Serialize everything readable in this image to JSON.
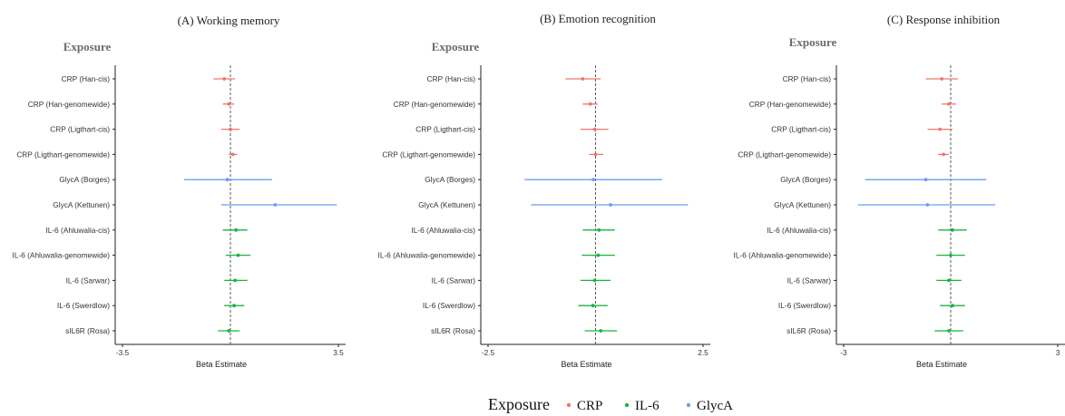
{
  "colors": {
    "CRP": "#f0766d",
    "IL-6": "#18b541",
    "GlycA": "#6a9ff0"
  },
  "legend": {
    "title": "Exposure",
    "items": [
      {
        "label": "CRP",
        "group": "CRP"
      },
      {
        "label": "IL-6",
        "group": "IL-6"
      },
      {
        "label": "GlycA",
        "group": "GlycA"
      }
    ]
  },
  "chart_data": [
    {
      "type": "forest",
      "title": "(A) Working memory",
      "ylabel_header": "Exposure",
      "xlabel": "Beta Estimate",
      "xlim": [
        -3.5,
        3.5
      ],
      "xticks": [
        "-3.5",
        "3.5"
      ],
      "rows": [
        {
          "label": "CRP (Han-cis)",
          "group": "CRP",
          "estimate": -0.2,
          "lower": -0.55,
          "upper": 0.15
        },
        {
          "label": "CRP (Han-genomewide)",
          "group": "CRP",
          "estimate": -0.05,
          "lower": -0.25,
          "upper": 0.12
        },
        {
          "label": "CRP (Ligthart-cis)",
          "group": "CRP",
          "estimate": 0.0,
          "lower": -0.3,
          "upper": 0.3
        },
        {
          "label": "CRP (Ligthart-genomewide)",
          "group": "CRP",
          "estimate": 0.08,
          "lower": -0.05,
          "upper": 0.22
        },
        {
          "label": "GlycA (Borges)",
          "group": "GlycA",
          "estimate": -0.1,
          "lower": -1.5,
          "upper": 1.35
        },
        {
          "label": "GlycA (Kettunen)",
          "group": "GlycA",
          "estimate": 1.45,
          "lower": -0.3,
          "upper": 3.45
        },
        {
          "label": "IL-6 (Ahluwalia-cis)",
          "group": "IL-6",
          "estimate": 0.18,
          "lower": -0.25,
          "upper": 0.55
        },
        {
          "label": "IL-6 (Ahluwalia-genomewide)",
          "group": "IL-6",
          "estimate": 0.25,
          "lower": -0.15,
          "upper": 0.65
        },
        {
          "label": "IL-6 (Sarwar)",
          "group": "IL-6",
          "estimate": 0.15,
          "lower": -0.2,
          "upper": 0.55
        },
        {
          "label": "IL-6 (Swerdlow)",
          "group": "IL-6",
          "estimate": 0.12,
          "lower": -0.2,
          "upper": 0.45
        },
        {
          "label": "sIL6R (Rosa)",
          "group": "IL-6",
          "estimate": -0.05,
          "lower": -0.4,
          "upper": 0.3
        }
      ]
    },
    {
      "type": "forest",
      "title": "(B) Emotion recognition",
      "ylabel_header": "Exposure",
      "xlabel": "Beta Estimate",
      "xlim": [
        -2.5,
        2.5
      ],
      "xticks": [
        "-2.5",
        "2.5"
      ],
      "rows": [
        {
          "label": "CRP (Han-cis)",
          "group": "CRP",
          "estimate": -0.3,
          "lower": -0.7,
          "upper": 0.12
        },
        {
          "label": "CRP (Han-genomewide)",
          "group": "CRP",
          "estimate": -0.12,
          "lower": -0.3,
          "upper": 0.05
        },
        {
          "label": "CRP (Ligthart-cis)",
          "group": "CRP",
          "estimate": -0.02,
          "lower": -0.35,
          "upper": 0.3
        },
        {
          "label": "CRP (Ligthart-genomewide)",
          "group": "CRP",
          "estimate": 0.0,
          "lower": -0.15,
          "upper": 0.18
        },
        {
          "label": "GlycA (Borges)",
          "group": "GlycA",
          "estimate": -0.05,
          "lower": -1.65,
          "upper": 1.55
        },
        {
          "label": "GlycA (Kettunen)",
          "group": "GlycA",
          "estimate": 0.35,
          "lower": -1.5,
          "upper": 2.15
        },
        {
          "label": "IL-6 (Ahluwalia-cis)",
          "group": "IL-6",
          "estimate": 0.08,
          "lower": -0.3,
          "upper": 0.45
        },
        {
          "label": "IL-6 (Ahluwalia-genomewide)",
          "group": "IL-6",
          "estimate": 0.06,
          "lower": -0.32,
          "upper": 0.45
        },
        {
          "label": "IL-6 (Sarwar)",
          "group": "IL-6",
          "estimate": -0.02,
          "lower": -0.35,
          "upper": 0.35
        },
        {
          "label": "IL-6 (Swerdlow)",
          "group": "IL-6",
          "estimate": -0.06,
          "lower": -0.4,
          "upper": 0.28
        },
        {
          "label": "sIL6R (Rosa)",
          "group": "IL-6",
          "estimate": 0.12,
          "lower": -0.25,
          "upper": 0.5
        }
      ]
    },
    {
      "type": "forest",
      "title": "(C) Response inhibition",
      "ylabel_header": "Exposure",
      "xlabel": "Beta Estimate",
      "xlim": [
        -3,
        3
      ],
      "xticks": [
        "-3",
        "3"
      ],
      "rows": [
        {
          "label": "CRP (Han-cis)",
          "group": "CRP",
          "estimate": -0.25,
          "lower": -0.7,
          "upper": 0.2
        },
        {
          "label": "CRP (Han-genomewide)",
          "group": "CRP",
          "estimate": -0.05,
          "lower": -0.25,
          "upper": 0.15
        },
        {
          "label": "CRP (Ligthart-cis)",
          "group": "CRP",
          "estimate": -0.3,
          "lower": -0.65,
          "upper": 0.05
        },
        {
          "label": "CRP (Ligthart-genomewide)",
          "group": "CRP",
          "estimate": -0.2,
          "lower": -0.35,
          "upper": -0.05
        },
        {
          "label": "GlycA (Borges)",
          "group": "GlycA",
          "estimate": -0.7,
          "lower": -2.4,
          "upper": 1.0
        },
        {
          "label": "GlycA (Kettunen)",
          "group": "GlycA",
          "estimate": -0.65,
          "lower": -2.6,
          "upper": 1.25
        },
        {
          "label": "IL-6 (Ahluwalia-cis)",
          "group": "IL-6",
          "estimate": 0.05,
          "lower": -0.35,
          "upper": 0.45
        },
        {
          "label": "IL-6 (Ahluwalia-genomewide)",
          "group": "IL-6",
          "estimate": 0.0,
          "lower": -0.4,
          "upper": 0.4
        },
        {
          "label": "IL-6 (Sarwar)",
          "group": "IL-6",
          "estimate": -0.05,
          "lower": -0.4,
          "upper": 0.3
        },
        {
          "label": "IL-6 (Swerdlow)",
          "group": "IL-6",
          "estimate": 0.05,
          "lower": -0.3,
          "upper": 0.4
        },
        {
          "label": "sIL6R (Rosa)",
          "group": "IL-6",
          "estimate": -0.05,
          "lower": -0.45,
          "upper": 0.35
        }
      ]
    }
  ]
}
